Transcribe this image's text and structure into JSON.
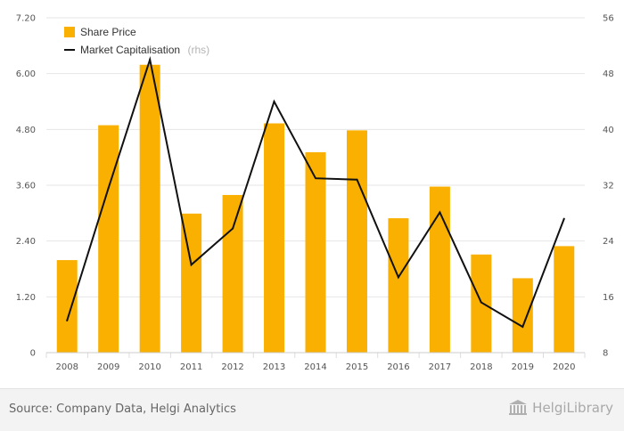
{
  "chart_data": {
    "type": "bar",
    "categories": [
      "2008",
      "2009",
      "2010",
      "2011",
      "2012",
      "2013",
      "2014",
      "2015",
      "2016",
      "2017",
      "2018",
      "2019",
      "2020"
    ],
    "series": [
      {
        "name": "Share Price",
        "type": "bar",
        "axis": "left",
        "color": "#f9b000",
        "values": [
          1.99,
          4.89,
          6.19,
          2.99,
          3.39,
          4.93,
          4.31,
          4.78,
          2.89,
          3.57,
          2.11,
          1.6,
          2.29
        ]
      },
      {
        "name": "Market Capitalisation",
        "note": "(rhs)",
        "type": "line",
        "axis": "right",
        "color": "#111111",
        "values": [
          12.6,
          31.6,
          50.0,
          20.6,
          25.8,
          44.0,
          33.0,
          32.8,
          18.8,
          28.1,
          15.2,
          11.7,
          27.2
        ]
      }
    ],
    "yleft": {
      "ticks": [
        "0",
        "1.20",
        "2.40",
        "3.60",
        "4.80",
        "6.00",
        "7.20"
      ],
      "min": 0,
      "max": 7.2
    },
    "yright": {
      "ticks": [
        "8",
        "16",
        "24",
        "32",
        "40",
        "48",
        "56"
      ],
      "min": 8,
      "max": 56
    },
    "grid": true,
    "legend_placement": "top-left"
  },
  "footer": {
    "source": "Source: Company Data, Helgi Analytics",
    "brand": "HelgiLibrary",
    "brand_icon": "building-icon"
  }
}
